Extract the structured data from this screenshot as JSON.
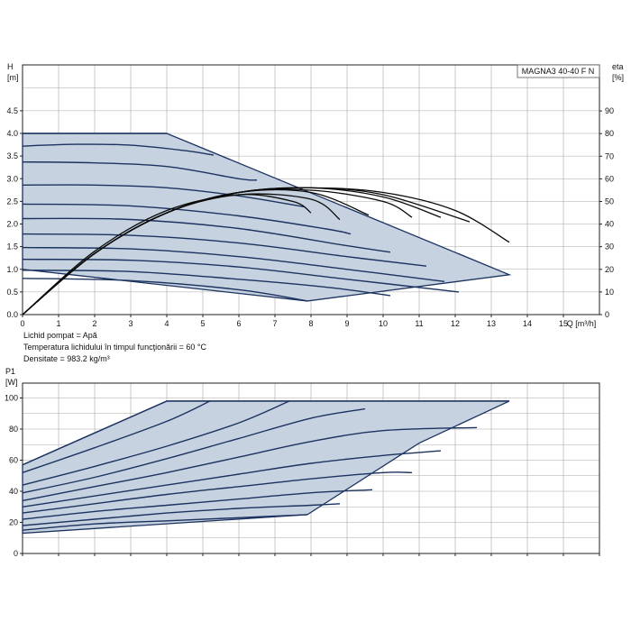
{
  "chart_data": [
    {
      "type": "line",
      "title": "MAGNA3 40-40 F N",
      "xlabel": "Q [m³/h]",
      "ylabel": "H\n[m]",
      "y2label": "eta\n[%]",
      "xlim": [
        0,
        16
      ],
      "ylim": [
        0,
        5
      ],
      "y2lim": [
        0,
        100
      ],
      "xticks": [
        "0",
        "1",
        "2",
        "3",
        "4",
        "5",
        "6",
        "7",
        "8",
        "9",
        "10",
        "11",
        "12",
        "13",
        "14",
        "15"
      ],
      "yticks": [
        "0.0",
        "0.5",
        "1.0",
        "1.5",
        "2.0",
        "2.5",
        "3.0",
        "3.5",
        "4.0",
        "4.5"
      ],
      "y2ticks": [
        "0",
        "10",
        "20",
        "30",
        "40",
        "50",
        "60",
        "70",
        "80",
        "90"
      ],
      "grid": true,
      "region": {
        "color": "#c6d2e0",
        "outline": [
          [
            0,
            4.0
          ],
          [
            4.0,
            4.0
          ],
          [
            13.5,
            0.88
          ],
          [
            7.9,
            0.3
          ],
          [
            0,
            1.0
          ]
        ]
      },
      "series": [
        {
          "values": [
            [
              0,
              4.0
            ],
            [
              4.0,
              4.0
            ]
          ]
        },
        {
          "values": [
            [
              0,
              3.72
            ],
            [
              1.5,
              3.76
            ],
            [
              3,
              3.74
            ],
            [
              4.5,
              3.62
            ],
            [
              5.3,
              3.52
            ]
          ]
        },
        {
          "values": [
            [
              0,
              3.37
            ],
            [
              2,
              3.35
            ],
            [
              4,
              3.27
            ],
            [
              6,
              3.0
            ],
            [
              6.5,
              2.97
            ]
          ]
        },
        {
          "values": [
            [
              0,
              2.86
            ],
            [
              2,
              2.86
            ],
            [
              4,
              2.8
            ],
            [
              6,
              2.62
            ],
            [
              7.8,
              2.38
            ]
          ]
        },
        {
          "values": [
            [
              0,
              2.44
            ],
            [
              3,
              2.4
            ],
            [
              6,
              2.18
            ],
            [
              8.5,
              1.88
            ],
            [
              9.1,
              1.78
            ]
          ]
        },
        {
          "values": [
            [
              0,
              2.12
            ],
            [
              3,
              2.1
            ],
            [
              6,
              1.9
            ],
            [
              9,
              1.52
            ],
            [
              10.2,
              1.38
            ]
          ]
        },
        {
          "values": [
            [
              0,
              1.78
            ],
            [
              3,
              1.75
            ],
            [
              6,
              1.58
            ],
            [
              9,
              1.28
            ],
            [
              11.2,
              1.07
            ]
          ]
        },
        {
          "values": [
            [
              0,
              1.48
            ],
            [
              3,
              1.45
            ],
            [
              6,
              1.28
            ],
            [
              9,
              1.0
            ],
            [
              11.7,
              0.73
            ]
          ]
        },
        {
          "values": [
            [
              0,
              1.22
            ],
            [
              3,
              1.2
            ],
            [
              6,
              1.05
            ],
            [
              9,
              0.78
            ],
            [
              12.1,
              0.5
            ]
          ]
        },
        {
          "values": [
            [
              0,
              0.98
            ],
            [
              3,
              0.95
            ],
            [
              6,
              0.78
            ],
            [
              8.5,
              0.6
            ],
            [
              10.2,
              0.42
            ]
          ]
        },
        {
          "values": [
            [
              0,
              0.8
            ],
            [
              3,
              0.75
            ],
            [
              6,
              0.55
            ],
            [
              7.9,
              0.3
            ]
          ]
        }
      ],
      "eta_series": [
        {
          "values": [
            [
              0,
              0
            ],
            [
              2,
              28
            ],
            [
              4,
              46
            ],
            [
              6,
              53
            ],
            [
              7.5,
              50
            ],
            [
              8,
              45
            ]
          ]
        },
        {
          "values": [
            [
              0,
              0
            ],
            [
              2,
              27
            ],
            [
              4,
              45
            ],
            [
              6,
              53
            ],
            [
              8,
              51
            ],
            [
              8.8,
              42
            ]
          ]
        },
        {
          "values": [
            [
              0,
              0
            ],
            [
              2,
              27
            ],
            [
              4,
              45
            ],
            [
              6,
              54
            ],
            [
              8,
              54
            ],
            [
              9.6,
              44
            ]
          ]
        },
        {
          "values": [
            [
              0,
              0
            ],
            [
              2,
              27
            ],
            [
              4,
              45
            ],
            [
              6,
              54
            ],
            [
              8,
              55
            ],
            [
              10,
              50
            ],
            [
              10.8,
              43
            ]
          ]
        },
        {
          "values": [
            [
              0,
              0
            ],
            [
              2,
              27
            ],
            [
              4,
              45
            ],
            [
              6,
              54
            ],
            [
              8,
              56
            ],
            [
              10,
              52
            ],
            [
              11.6,
              43
            ]
          ]
        },
        {
          "values": [
            [
              0,
              0
            ],
            [
              2,
              27
            ],
            [
              4,
              45
            ],
            [
              6,
              54
            ],
            [
              8,
              56
            ],
            [
              10,
              53
            ],
            [
              12.4,
              41
            ]
          ]
        },
        {
          "values": [
            [
              0,
              0
            ],
            [
              2,
              27
            ],
            [
              4,
              45
            ],
            [
              6,
              54
            ],
            [
              8,
              56
            ],
            [
              10,
              54
            ],
            [
              12,
              46
            ],
            [
              13.5,
              32
            ]
          ]
        }
      ]
    },
    {
      "type": "line",
      "xlabel": "",
      "ylabel": "P1\n[W]",
      "xlim": [
        0,
        16
      ],
      "ylim": [
        0,
        110
      ],
      "yticks": [
        "0",
        "20",
        "40",
        "60",
        "80",
        "100"
      ],
      "grid": true,
      "region": {
        "color": "#c6d2e0",
        "outline": [
          [
            0,
            57
          ],
          [
            4.0,
            98
          ],
          [
            13.5,
            98
          ],
          [
            11,
            71
          ],
          [
            7.9,
            25
          ],
          [
            0,
            13
          ]
        ]
      },
      "series": [
        {
          "values": [
            [
              0,
              57
            ],
            [
              4.0,
              98
            ],
            [
              13.5,
              98
            ]
          ]
        },
        {
          "values": [
            [
              0,
              52
            ],
            [
              2,
              68
            ],
            [
              4,
              85
            ],
            [
              5.2,
              98
            ]
          ]
        },
        {
          "values": [
            [
              0,
              44
            ],
            [
              2,
              56
            ],
            [
              4,
              69
            ],
            [
              6,
              84
            ],
            [
              7.4,
              98
            ]
          ]
        },
        {
          "values": [
            [
              0,
              39
            ],
            [
              2,
              49
            ],
            [
              4,
              61
            ],
            [
              6,
              74
            ],
            [
              8,
              87
            ],
            [
              9.5,
              93
            ]
          ]
        },
        {
          "values": [
            [
              0,
              34
            ],
            [
              2,
              43
            ],
            [
              4,
              52
            ],
            [
              6,
              62
            ],
            [
              8,
              72
            ],
            [
              10,
              79
            ],
            [
              12.6,
              81
            ]
          ]
        },
        {
          "values": [
            [
              0,
              30
            ],
            [
              2,
              37
            ],
            [
              4,
              44
            ],
            [
              6,
              51
            ],
            [
              8,
              58
            ],
            [
              10,
              63
            ],
            [
              11.6,
              66
            ]
          ]
        },
        {
          "values": [
            [
              0,
              26
            ],
            [
              2,
              32
            ],
            [
              4,
              38
            ],
            [
              6,
              43
            ],
            [
              8,
              48
            ],
            [
              10,
              52
            ],
            [
              10.8,
              52
            ]
          ]
        },
        {
          "values": [
            [
              0,
              22
            ],
            [
              2,
              27
            ],
            [
              4,
              31
            ],
            [
              6,
              35
            ],
            [
              8,
              39
            ],
            [
              9.7,
              41
            ]
          ]
        },
        {
          "values": [
            [
              0,
              18
            ],
            [
              2,
              22
            ],
            [
              4,
              26
            ],
            [
              6,
              29
            ],
            [
              8,
              31
            ],
            [
              8.8,
              32
            ]
          ]
        },
        {
          "values": [
            [
              0,
              15
            ],
            [
              2,
              19
            ],
            [
              4,
              21
            ],
            [
              6,
              23
            ],
            [
              7.9,
              25
            ]
          ]
        }
      ]
    }
  ],
  "notes": [
    "Lichid pompat = Apă",
    "Temperatura lichidului în timpul funcţionării = 60 °C",
    "Densitate = 983.2 kg/m³"
  ]
}
